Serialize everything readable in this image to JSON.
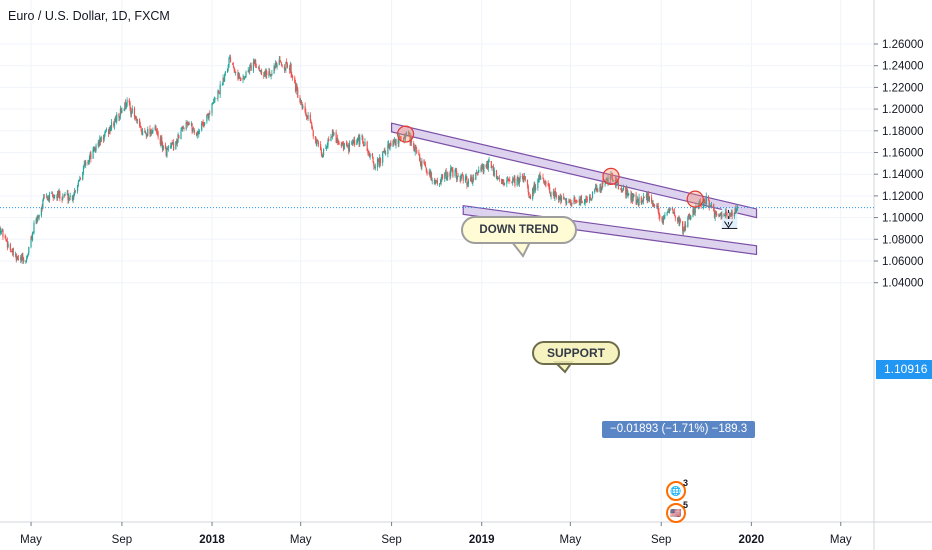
{
  "header": {
    "title": "Euro / U.S. Dollar, 1D, FXCM"
  },
  "price_axis": {
    "labels": [
      "1.26000",
      "1.24000",
      "1.22000",
      "1.20000",
      "1.18000",
      "1.16000",
      "1.14000",
      "1.12000",
      "1.10000",
      "1.08000",
      "1.06000",
      "1.04000"
    ],
    "last_price": "1.10916"
  },
  "time_axis": {
    "labels": [
      {
        "text": "May",
        "bold": false
      },
      {
        "text": "Sep",
        "bold": false
      },
      {
        "text": "2018",
        "bold": true
      },
      {
        "text": "May",
        "bold": false
      },
      {
        "text": "Sep",
        "bold": false
      },
      {
        "text": "2019",
        "bold": true
      },
      {
        "text": "May",
        "bold": false
      },
      {
        "text": "Sep",
        "bold": false
      },
      {
        "text": "2020",
        "bold": true
      },
      {
        "text": "May",
        "bold": false
      }
    ]
  },
  "annotations": {
    "down_trend_label": "DOWN TREND",
    "support_label": "SUPPORT",
    "measure_label": "−0.01893 (−1.71%) −189.3",
    "event_badge_1_count": "3",
    "event_badge_2_count": "5"
  },
  "colors": {
    "up_candle": "#26a69a",
    "down_candle": "#ef5350",
    "channel_line": "#7b4fa6",
    "channel_fill": "#d1c4e9",
    "last_price_line": "#2196f3",
    "measure_fill": "#e3effd"
  },
  "chart_data": {
    "type": "candlestick",
    "title": "Euro / U.S. Dollar, 1D, FXCM",
    "y_range": [
      1.035,
      1.275
    ],
    "x_range": [
      "2017-03-20",
      "2020-06-15"
    ],
    "grid": true,
    "close_path": [
      [
        "2017-03-20",
        1.09
      ],
      [
        "2017-04-10",
        1.062
      ],
      [
        "2017-04-24",
        1.06
      ],
      [
        "2017-05-05",
        1.091
      ],
      [
        "2017-05-19",
        1.117
      ],
      [
        "2017-06-09",
        1.121
      ],
      [
        "2017-06-26",
        1.119
      ],
      [
        "2017-07-10",
        1.145
      ],
      [
        "2017-07-31",
        1.168
      ],
      [
        "2017-08-18",
        1.184
      ],
      [
        "2017-09-08",
        1.207
      ],
      [
        "2017-09-28",
        1.178
      ],
      [
        "2017-10-16",
        1.181
      ],
      [
        "2017-10-30",
        1.16
      ],
      [
        "2017-11-13",
        1.168
      ],
      [
        "2017-11-27",
        1.19
      ],
      [
        "2017-12-11",
        1.177
      ],
      [
        "2017-12-27",
        1.195
      ],
      [
        "2018-01-12",
        1.219
      ],
      [
        "2018-01-25",
        1.248
      ],
      [
        "2018-02-09",
        1.226
      ],
      [
        "2018-02-26",
        1.242
      ],
      [
        "2018-03-16",
        1.232
      ],
      [
        "2018-04-02",
        1.242
      ],
      [
        "2018-04-17",
        1.238
      ],
      [
        "2018-05-01",
        1.203
      ],
      [
        "2018-05-15",
        1.185
      ],
      [
        "2018-05-29",
        1.156
      ],
      [
        "2018-06-11",
        1.178
      ],
      [
        "2018-07-02",
        1.164
      ],
      [
        "2018-07-23",
        1.172
      ],
      [
        "2018-08-10",
        1.147
      ],
      [
        "2018-08-28",
        1.165
      ],
      [
        "2018-09-24",
        1.177
      ],
      [
        "2018-10-12",
        1.149
      ],
      [
        "2018-10-31",
        1.132
      ],
      [
        "2018-11-20",
        1.142
      ],
      [
        "2018-12-14",
        1.133
      ],
      [
        "2019-01-10",
        1.15
      ],
      [
        "2019-01-24",
        1.133
      ],
      [
        "2019-02-13",
        1.132
      ],
      [
        "2019-03-01",
        1.137
      ],
      [
        "2019-03-07",
        1.119
      ],
      [
        "2019-03-20",
        1.137
      ],
      [
        "2019-04-05",
        1.122
      ],
      [
        "2019-04-26",
        1.116
      ],
      [
        "2019-05-20",
        1.115
      ],
      [
        "2019-06-07",
        1.126
      ],
      [
        "2019-06-25",
        1.138
      ],
      [
        "2019-07-10",
        1.126
      ],
      [
        "2019-07-31",
        1.115
      ],
      [
        "2019-08-12",
        1.12
      ],
      [
        "2019-08-26",
        1.11
      ],
      [
        "2019-09-03",
        1.097
      ],
      [
        "2019-09-13",
        1.106
      ],
      [
        "2019-10-01",
        1.09
      ],
      [
        "2019-10-11",
        1.103
      ],
      [
        "2019-10-22",
        1.112
      ],
      [
        "2019-11-01",
        1.117
      ],
      [
        "2019-11-14",
        1.101
      ],
      [
        "2019-11-29",
        1.101
      ],
      [
        "2019-12-10",
        1.107
      ],
      [
        "2019-12-13",
        1.109
      ]
    ],
    "overlays": {
      "channel_upper": [
        [
          "2018-09-01",
          1.187
        ],
        [
          "2020-01-08",
          1.108
        ]
      ],
      "channel_lower": [
        [
          "2018-12-07",
          1.111
        ],
        [
          "2020-01-08",
          1.074
        ]
      ],
      "channel_width_price": 0.008,
      "touch_points": [
        [
          "2018-09-20",
          1.177
        ],
        [
          "2019-06-25",
          1.138
        ],
        [
          "2019-10-17",
          1.117
        ]
      ],
      "measure_box": {
        "x": [
          "2019-11-22",
          "2019-12-13"
        ],
        "y": [
          1.109,
          1.09
        ]
      },
      "measure_arrow": {
        "x": "2019-12-01",
        "y": [
          1.107,
          1.09
        ]
      },
      "last_price": 1.10916
    }
  }
}
